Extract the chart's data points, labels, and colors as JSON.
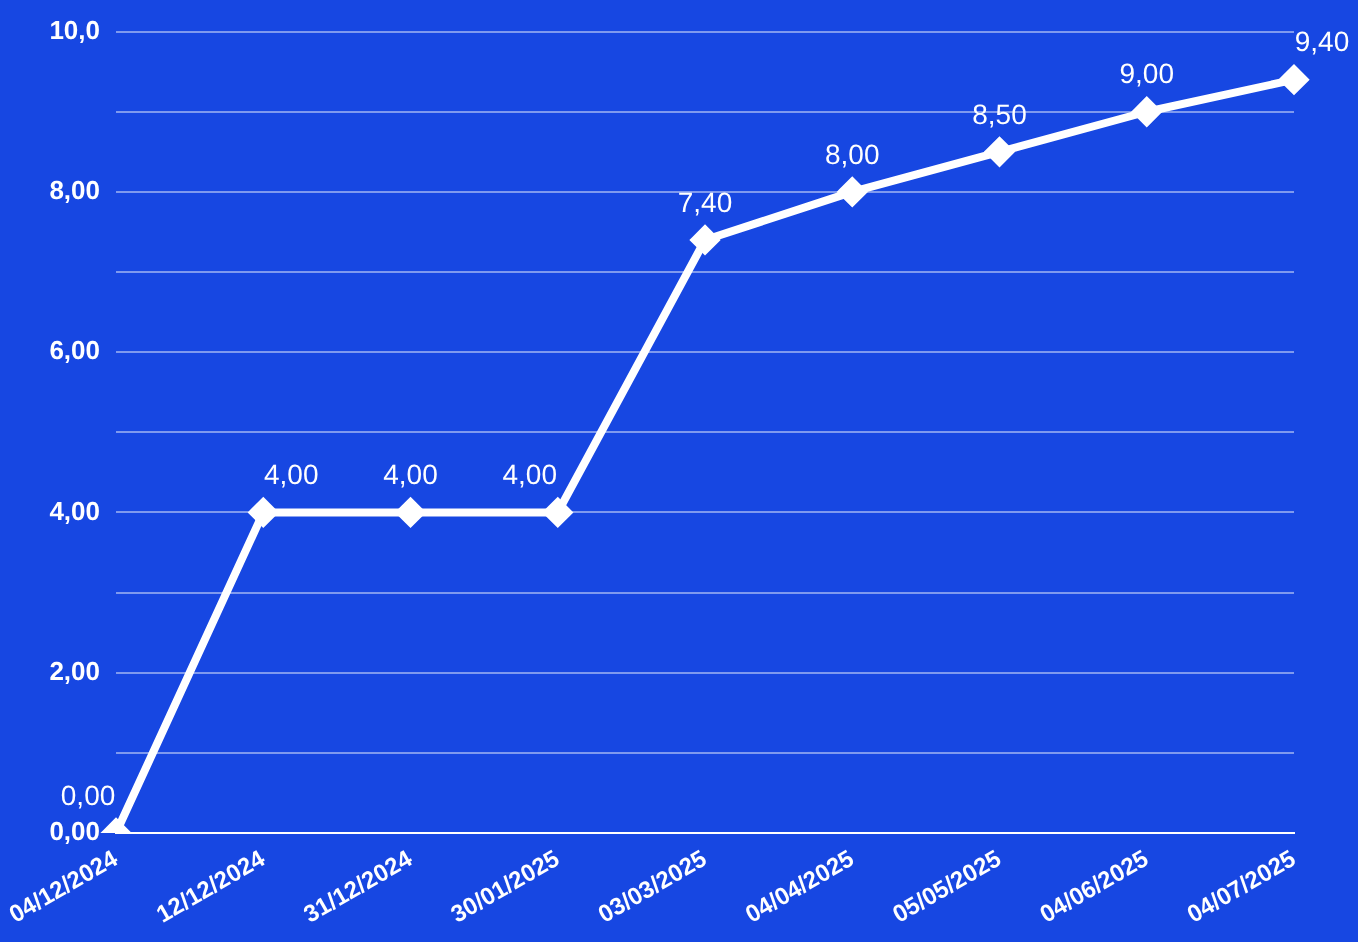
{
  "chart_data": {
    "type": "line",
    "categories": [
      "04/12/2024",
      "12/12/2024",
      "31/12/2024",
      "30/01/2025",
      "03/03/2025",
      "04/04/2025",
      "05/05/2025",
      "04/06/2025",
      "04/07/2025"
    ],
    "series": [
      {
        "color": "#ffffff",
        "values": [
          0,
          4,
          4,
          4,
          7.4,
          8,
          8.5,
          9,
          9.4
        ],
        "value_labels": [
          "0,00",
          "4,00",
          "4,00",
          "4,00",
          "7,40",
          "8,00",
          "8,50",
          "9,00",
          "9,40"
        ]
      }
    ],
    "ylim": [
      0,
      10
    ],
    "yticks": [
      {
        "value": 0,
        "label": "0,00"
      },
      {
        "value": 1,
        "label": null
      },
      {
        "value": 2,
        "label": "2,00"
      },
      {
        "value": 3,
        "label": null
      },
      {
        "value": 4,
        "label": "4,00"
      },
      {
        "value": 5,
        "label": null
      },
      {
        "value": 6,
        "label": "6,00"
      },
      {
        "value": 7,
        "label": null
      },
      {
        "value": 8,
        "label": "8,00"
      },
      {
        "value": 9,
        "label": null
      },
      {
        "value": 10,
        "label": "10,0"
      }
    ],
    "grid": "y",
    "legend": false,
    "marker": "diamond",
    "line_style": "solid"
  }
}
